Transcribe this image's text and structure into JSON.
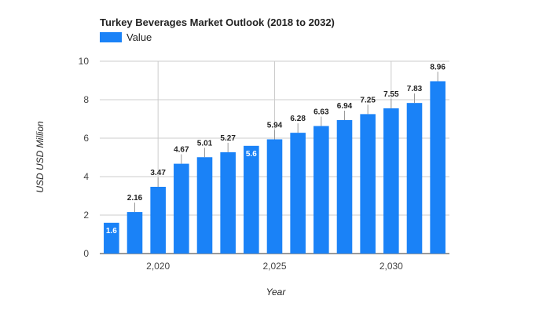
{
  "chart_data": {
    "type": "bar",
    "title": "Turkey Beverages Market Outlook (2018 to 2032)",
    "xlabel": "Year",
    "ylabel": "USD USD Million",
    "x": [
      2018,
      2019,
      2020,
      2021,
      2022,
      2023,
      2024,
      2025,
      2026,
      2027,
      2028,
      2029,
      2030,
      2031,
      2032
    ],
    "x_ticks": [
      2020,
      2025,
      2030
    ],
    "x_tick_labels": [
      "2,020",
      "2,025",
      "2,030"
    ],
    "y_ticks": [
      0,
      2,
      4,
      6,
      8,
      10
    ],
    "ylim": [
      0,
      10
    ],
    "grid": true,
    "legend_position": "top-left",
    "series": [
      {
        "name": "Value",
        "color": "#1a82f7",
        "values": [
          1.6,
          2.16,
          3.47,
          4.67,
          5.01,
          5.27,
          5.6,
          5.94,
          6.28,
          6.63,
          6.94,
          7.25,
          7.55,
          7.83,
          8.96
        ],
        "labels": [
          "1.6",
          "2.16",
          "3.47",
          "4.67",
          "5.01",
          "5.27",
          "5.6",
          "5.94",
          "6.28",
          "6.63",
          "6.94",
          "7.25",
          "7.55",
          "7.83",
          "8.96"
        ],
        "labels_inside": [
          true,
          false,
          false,
          false,
          false,
          false,
          true,
          false,
          false,
          false,
          false,
          false,
          false,
          false,
          false
        ]
      }
    ]
  }
}
